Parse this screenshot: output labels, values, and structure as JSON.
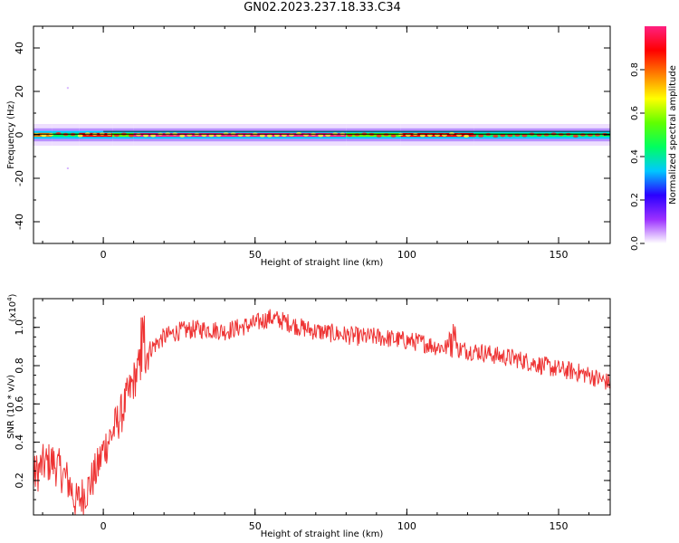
{
  "title": "GN02.2023.237.18.33.C34",
  "chart_data": [
    {
      "type": "heatmap",
      "title": "GN02.2023.237.18.33.C34",
      "xlabel": "Height of straight line (km)",
      "ylabel": "Frequency (Hz)",
      "xlim": [
        -23,
        167
      ],
      "ylim": [
        -50,
        50
      ],
      "xticks": [
        0,
        50,
        100,
        150
      ],
      "yticks": [
        -40,
        -20,
        0,
        20,
        40
      ],
      "grid": false,
      "colorbar": {
        "label": "Normalized spectral amplitude",
        "range": [
          0,
          1
        ],
        "ticks": [
          "0.0",
          "0.2",
          "0.4",
          "0.6",
          "0.8"
        ],
        "colors": [
          "#ffffff",
          "#9b30ff",
          "#2a00ff",
          "#00c8ff",
          "#00ff60",
          "#60ff00",
          "#ffff00",
          "#ff8000",
          "#ff0000",
          "#ff2080"
        ]
      },
      "band_center_hz": 0,
      "band_halfwidth_hz": 3,
      "band_segments": [
        {
          "from": -23,
          "to": -17,
          "amplitude": 0.75
        },
        {
          "from": -17,
          "to": -8,
          "amplitude": 0.45
        },
        {
          "from": -8,
          "to": 3,
          "amplitude": 0.9
        },
        {
          "from": 3,
          "to": 10,
          "amplitude": 0.5
        },
        {
          "from": 10,
          "to": 80,
          "amplitude": 0.95
        },
        {
          "from": 80,
          "to": 98,
          "amplitude": 0.5
        },
        {
          "from": 98,
          "to": 122,
          "amplitude": 0.9
        },
        {
          "from": 122,
          "to": 167,
          "amplitude": 0.45
        }
      ]
    },
    {
      "type": "line",
      "xlabel": "Height of straight line (km)",
      "ylabel": "SNR (10 * v/v)",
      "yscale_label": "(x10",
      "yscale_exp": "4",
      "yscale_close": ")",
      "xlim": [
        -23,
        167
      ],
      "ylim": [
        0.02,
        1.15
      ],
      "xticks": [
        0,
        50,
        100,
        150
      ],
      "yticks": [
        0.2,
        0.4,
        0.6,
        0.8,
        1.0
      ],
      "grid": false,
      "series": [
        {
          "color": "#ee3333",
          "x": [
            -23,
            -20,
            -17,
            -14,
            -11,
            -9,
            -7,
            -5,
            -2,
            0,
            3,
            6,
            9,
            12,
            15,
            20,
            25,
            30,
            35,
            40,
            45,
            50,
            55,
            60,
            65,
            70,
            75,
            80,
            85,
            90,
            95,
            100,
            105,
            110,
            115,
            120,
            125,
            130,
            135,
            140,
            145,
            150,
            155,
            160,
            165,
            167
          ],
          "values": [
            0.22,
            0.28,
            0.3,
            0.25,
            0.18,
            0.08,
            0.12,
            0.16,
            0.26,
            0.36,
            0.45,
            0.55,
            0.68,
            0.8,
            0.88,
            0.95,
            0.98,
            0.99,
            0.99,
            0.98,
            1.0,
            1.02,
            1.05,
            1.03,
            1.0,
            0.98,
            0.97,
            0.96,
            0.95,
            0.95,
            0.94,
            0.93,
            0.92,
            0.9,
            0.89,
            0.88,
            0.87,
            0.85,
            0.84,
            0.82,
            0.8,
            0.78,
            0.77,
            0.75,
            0.72,
            0.71
          ],
          "noise": 0.05
        }
      ]
    }
  ]
}
